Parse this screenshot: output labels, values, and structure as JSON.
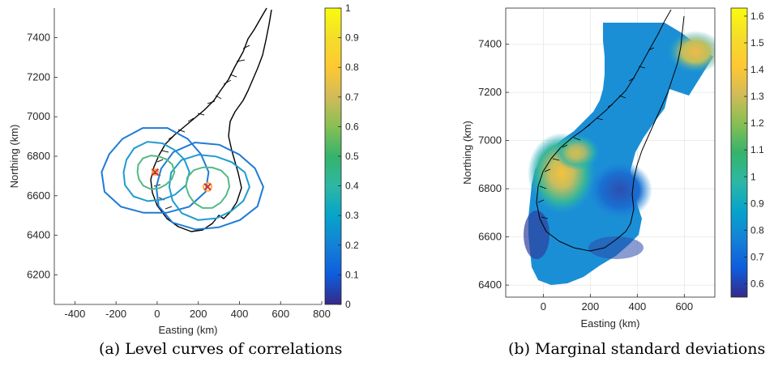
{
  "captions": {
    "a": "(a) Level curves of correlations",
    "b": "(b) Marginal standard deviations"
  },
  "chart_data": [
    {
      "type": "contour",
      "xlabel": "Easting (km)",
      "ylabel": "Northing (km)",
      "xlim": [
        -500,
        800
      ],
      "ylim": [
        6050,
        7550
      ],
      "xticks": [
        "-400",
        "-200",
        "0",
        "200",
        "400",
        "600",
        "800"
      ],
      "xtick_values": [
        -400,
        -200,
        0,
        200,
        400,
        600,
        800
      ],
      "yticks": [
        "6200",
        "6400",
        "6600",
        "6800",
        "7000",
        "7200",
        "7400"
      ],
      "ytick_values": [
        6200,
        6400,
        6600,
        6800,
        7000,
        7200,
        7400
      ],
      "grid": false,
      "colorbar": {
        "range": [
          0,
          1
        ],
        "ticks": [
          "0",
          "0.1",
          "0.2",
          "0.3",
          "0.4",
          "0.5",
          "0.6",
          "0.7",
          "0.8",
          "0.9",
          "1"
        ],
        "colormap": "parula"
      },
      "reference_points": [
        {
          "easting": -10,
          "northing": 6720,
          "marker": "x",
          "color": "#d6303a"
        },
        {
          "easting": 245,
          "northing": 6645,
          "marker": "x",
          "color": "#d6303a"
        }
      ],
      "contour_levels": [
        {
          "level": 0.2,
          "radii_km": [
            [
              260,
              220
            ],
            [
              260,
              220
            ]
          ],
          "color": "#1f7ad6"
        },
        {
          "level": 0.3,
          "radii_km": [
            [
              160,
              150
            ],
            [
              195,
              165
            ]
          ],
          "color": "#1f9cd0"
        },
        {
          "level": 0.6,
          "radii_km": [
            [
              90,
              85
            ],
            [
              105,
              105
            ]
          ],
          "color": "#55b985"
        },
        {
          "level": 0.9,
          "radii_km": [
            [
              14,
              14
            ],
            [
              20,
              20
            ]
          ],
          "color": "#f9b43a"
        }
      ]
    },
    {
      "type": "heatmap",
      "xlabel": "Easting (km)",
      "ylabel": "Northing (km)",
      "xlim": [
        -160,
        730
      ],
      "ylim": [
        6350,
        7550
      ],
      "xticks": [
        "0",
        "200",
        "400",
        "600"
      ],
      "xtick_values": [
        0,
        200,
        400,
        600
      ],
      "yticks": [
        "6400",
        "6600",
        "6800",
        "7000",
        "7200",
        "7400"
      ],
      "ytick_values": [
        6400,
        6600,
        6800,
        7000,
        7200,
        7400
      ],
      "grid": true,
      "colorbar": {
        "range": [
          0.55,
          1.63
        ],
        "ticks": [
          "0.6",
          "0.7",
          "0.8",
          "0.9",
          "1",
          "1.1",
          "1.2",
          "1.3",
          "1.4",
          "1.5",
          "1.6"
        ],
        "colormap": "parula"
      },
      "value_peaks": [
        {
          "easting": 70,
          "northing": 6870,
          "value": 1.55
        },
        {
          "easting": 620,
          "northing": 7380,
          "value": 1.5
        },
        {
          "easting": 300,
          "northing": 6780,
          "value": 0.75
        },
        {
          "easting": -70,
          "northing": 6560,
          "value": 0.6
        }
      ]
    }
  ],
  "colors": {
    "axis": "#262626",
    "grid": "#e6e6e6",
    "coast": "#000000"
  }
}
